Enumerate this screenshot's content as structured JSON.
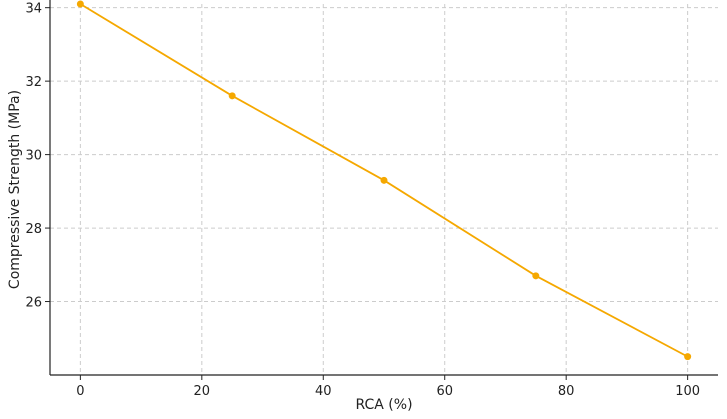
{
  "chart_data": {
    "type": "line",
    "title": "",
    "xlabel": "RCA (%)",
    "ylabel": "Compressive Strength (MPa)",
    "xlim": [
      -5,
      105
    ],
    "ylim": [
      24,
      34.1
    ],
    "xticks": [
      0,
      20,
      40,
      60,
      80,
      100
    ],
    "yticks": [
      26,
      28,
      30,
      32,
      34
    ],
    "grid": true,
    "series": [
      {
        "color": "#f5a800",
        "points": [
          {
            "x": 0,
            "y": 34.1
          },
          {
            "x": 25,
            "y": 31.6
          },
          {
            "x": 50,
            "y": 29.3
          },
          {
            "x": 75,
            "y": 26.7
          },
          {
            "x": 100,
            "y": 24.5
          }
        ]
      }
    ]
  }
}
